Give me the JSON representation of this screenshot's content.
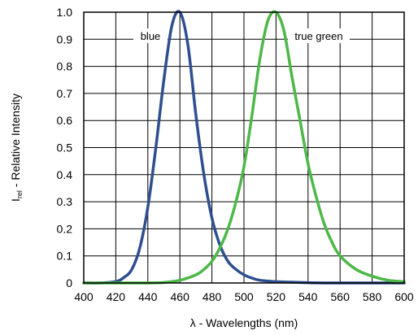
{
  "chart_data": {
    "type": "line",
    "title": "",
    "xlabel": "λ - Wavelengths (nm)",
    "ylabel_main": "I",
    "ylabel_sub": "rel",
    "ylabel_rest": " - Relative Intensity",
    "xlim": [
      400,
      600
    ],
    "ylim": [
      0,
      1.0
    ],
    "x_ticks": [
      "400",
      "420",
      "440",
      "460",
      "480",
      "500",
      "520",
      "540",
      "560",
      "580",
      "600"
    ],
    "y_ticks": [
      "0",
      "0.1",
      "0.2",
      "0.3",
      "0.4",
      "0.5",
      "0.6",
      "0.7",
      "0.8",
      "0.9",
      "1.0"
    ],
    "grid": true,
    "legend": "inline labels near curve peaks",
    "series": [
      {
        "name": "blue",
        "color": "#2e4f8f",
        "x": [
          400,
          410,
          420,
          425,
          430,
          435,
          440,
          445,
          450,
          455,
          460,
          465,
          470,
          475,
          480,
          485,
          490,
          495,
          500,
          505,
          510,
          520,
          530,
          540,
          550,
          560,
          570,
          580,
          590,
          600
        ],
        "y": [
          0,
          0,
          0.005,
          0.02,
          0.05,
          0.13,
          0.28,
          0.5,
          0.75,
          0.95,
          1.0,
          0.88,
          0.62,
          0.4,
          0.24,
          0.14,
          0.08,
          0.05,
          0.03,
          0.018,
          0.01,
          0.005,
          0.003,
          0.001,
          0,
          0,
          0,
          0,
          0,
          0
        ]
      },
      {
        "name": "true green",
        "color": "#4db848",
        "x": [
          400,
          420,
          440,
          450,
          460,
          470,
          475,
          480,
          485,
          490,
          495,
          500,
          505,
          510,
          515,
          520,
          525,
          530,
          535,
          540,
          545,
          550,
          555,
          560,
          570,
          580,
          590,
          600
        ],
        "y": [
          0,
          0,
          0,
          0.002,
          0.01,
          0.03,
          0.05,
          0.08,
          0.13,
          0.2,
          0.3,
          0.43,
          0.62,
          0.83,
          0.97,
          1.0,
          0.93,
          0.76,
          0.6,
          0.44,
          0.32,
          0.22,
          0.15,
          0.1,
          0.05,
          0.025,
          0.01,
          0.005
        ]
      }
    ]
  }
}
